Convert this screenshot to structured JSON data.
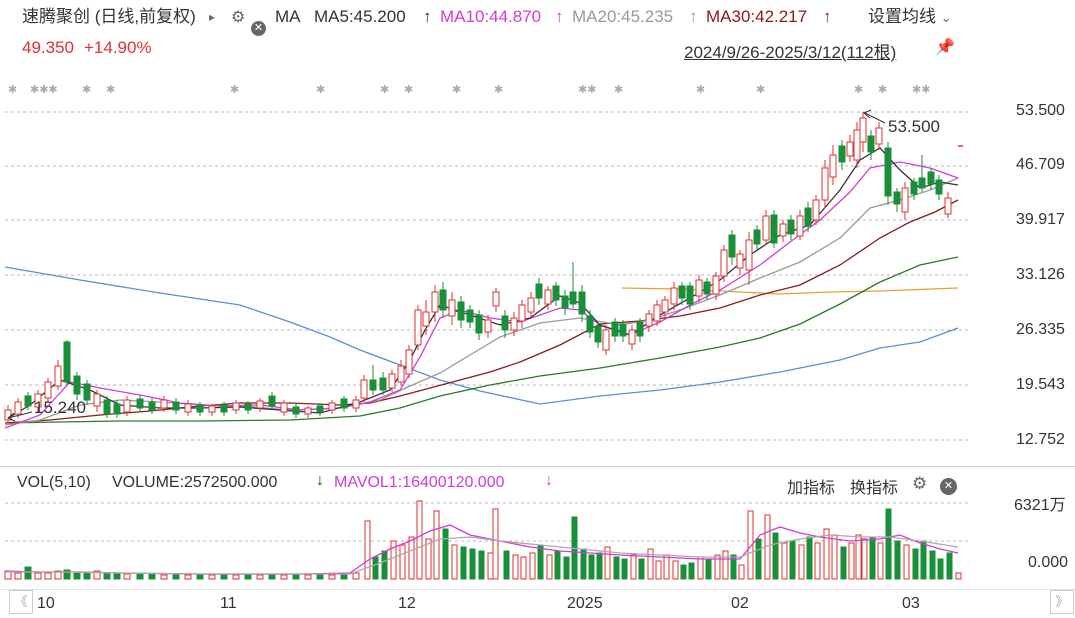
{
  "header": {
    "stock_title": "速腾聚创 (日线,前复权)",
    "play_glyph": "▸",
    "ma_label": "MA",
    "ma5": "MA5:45.200",
    "ma10": "MA10:44.870",
    "ma20": "MA20:45.235",
    "ma30": "MA30:42.217",
    "up_arrow": "↑",
    "settings": "设置均线",
    "settings_caret": "⌄",
    "price": "49.350",
    "change": "+14.90%",
    "range": "2024/9/26-2025/3/12(112根)",
    "colors": {
      "up": "#e03131",
      "down": "#1a8f3a",
      "ma5": "#333333",
      "ma10": "#d63ad6",
      "ma20": "#999999",
      "ma30": "#8b1a1a"
    }
  },
  "price_axis": [
    "53.500",
    "46.709",
    "39.917",
    "33.126",
    "26.335",
    "19.543",
    "12.752"
  ],
  "annotations": {
    "high": "53.500",
    "low": "15.240"
  },
  "volume_panel": {
    "vol_title": "VOL(5,10)",
    "volume": "VOLUME:2572500.000",
    "down_arrow": "↓",
    "mavol1": "MAVOL1:16400120.000",
    "add_indicator": "加指标",
    "swap_indicator": "换指标",
    "axis_top": "6321万",
    "axis_bottom": "0.000"
  },
  "x_axis": [
    "10",
    "11",
    "12",
    "2025",
    "02",
    "03"
  ],
  "nav": {
    "prev": "《",
    "next": "》"
  },
  "chart_data": {
    "type": "candlestick",
    "ylim": [
      12.752,
      53.5
    ],
    "high": 53.5,
    "low": 15.24,
    "last_close": 49.35,
    "change_pct": 14.9,
    "bars": 112,
    "period": "2024/9/26-2025/3/12",
    "moving_averages": {
      "MA5": 45.2,
      "MA10": 44.87,
      "MA20": 45.235,
      "MA30": 42.217
    },
    "volume": {
      "last": 2572500.0,
      "MAVOL1": 16400120.0,
      "axis_max": "6321万"
    }
  }
}
